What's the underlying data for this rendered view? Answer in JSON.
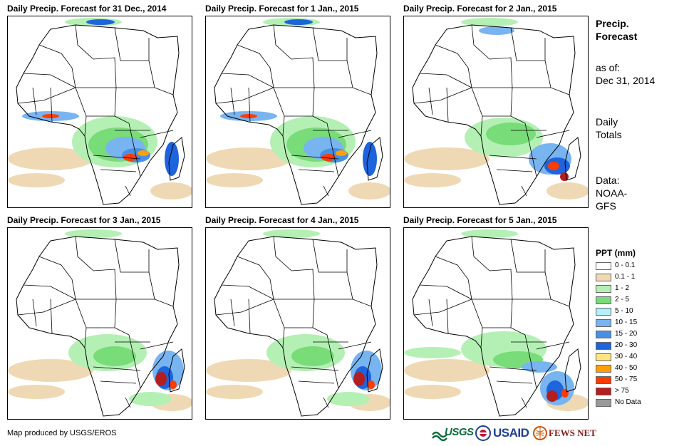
{
  "panels": [
    {
      "title": "Daily Precip. Forecast for 31 Dec., 2014",
      "rain": "central-east"
    },
    {
      "title": "Daily Precip. Forecast for 1 Jan., 2015",
      "rain": "central-east"
    },
    {
      "title": "Daily Precip. Forecast for 2 Jan., 2015",
      "rain": "east-heavy"
    },
    {
      "title": "Daily Precip. Forecast for 3 Jan., 2015",
      "rain": "mozambique"
    },
    {
      "title": "Daily Precip. Forecast for 4 Jan., 2015",
      "rain": "mozambique"
    },
    {
      "title": "Daily Precip. Forecast for 5 Jan., 2015",
      "rain": "madagascar"
    }
  ],
  "sidebar": {
    "heading_line1": "Precip.",
    "heading_line2": "Forecast",
    "asof_label": "as of:",
    "asof_date": "Dec 31, 2014",
    "totals_line1": "Daily",
    "totals_line2": "Totals",
    "data_line1": "Data:",
    "data_line2": "NOAA-",
    "data_line3": "GFS"
  },
  "legend": {
    "title": "PPT (mm)",
    "items": [
      {
        "label": "0 - 0.1",
        "color": "#ffffff"
      },
      {
        "label": "0.1 - 1",
        "color": "#efd9b4"
      },
      {
        "label": "1 - 2",
        "color": "#b4f0b4"
      },
      {
        "label": "2 - 5",
        "color": "#78dc78"
      },
      {
        "label": "5 - 10",
        "color": "#b4f0fa"
      },
      {
        "label": "10 - 15",
        "color": "#78b4f0"
      },
      {
        "label": "15 - 20",
        "color": "#4690e6"
      },
      {
        "label": "20 - 30",
        "color": "#1e64dc"
      },
      {
        "label": "30 - 40",
        "color": "#ffe682"
      },
      {
        "label": "40 - 50",
        "color": "#ffa000"
      },
      {
        "label": "50 - 75",
        "color": "#ff3c00"
      },
      {
        "label": "> 75",
        "color": "#b41e1e"
      },
      {
        "label": "No Data",
        "color": "#999999"
      }
    ]
  },
  "footer": {
    "credit": "Map produced by USGS/EROS",
    "logos": [
      "USGS",
      "USAID",
      "FEWS NET"
    ]
  }
}
